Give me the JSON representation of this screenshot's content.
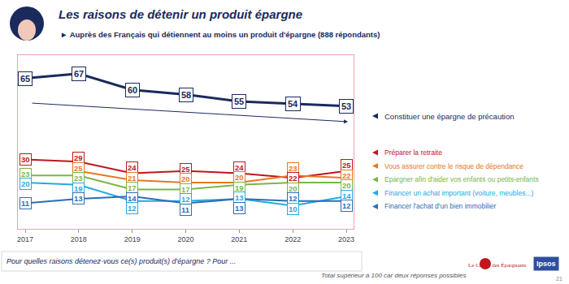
{
  "chart_data": {
    "type": "line",
    "title": "Les raisons de détenir un produit épargne",
    "subtitle": "► Auprès des Français qui détiennent au moins un produit d'épargne (888 répondants)",
    "categories": [
      "2017",
      "2018",
      "2019",
      "2020",
      "2021",
      "2022",
      "2023"
    ],
    "series": [
      {
        "name": "Constituer une épargne de précaution",
        "color": "#1b2a5c",
        "values": [
          65,
          67,
          60,
          58,
          55,
          54,
          53
        ]
      },
      {
        "name": "Préparer la retraite",
        "color": "#c0161e",
        "values": [
          30,
          29,
          24,
          25,
          24,
          22,
          25
        ]
      },
      {
        "name": "Vous assurer contre le risque de dépendance",
        "color": "#e87722",
        "values": [
          null,
          25,
          21,
          20,
          20,
          23,
          22
        ]
      },
      {
        "name": "Epargner afin d'aider vos enfants ou petits-enfants",
        "color": "#7ab648",
        "values": [
          23,
          23,
          17,
          17,
          19,
          20,
          20
        ]
      },
      {
        "name": "Financer un achat important (voiture, meubles...)",
        "color": "#29a9e0",
        "values": [
          20,
          19,
          12,
          12,
          13,
          10,
          14
        ]
      },
      {
        "name": "Financer l'achat d'un bien immobilier",
        "color": "#2f6db5",
        "values": [
          11,
          13,
          14,
          11,
          13,
          12,
          12
        ]
      }
    ],
    "ylim": [
      0,
      75
    ],
    "yticks": [],
    "tick_labels": "x",
    "grid": false,
    "data_labels": true,
    "line_style": "solid",
    "marker": "none",
    "legend": "right"
  },
  "footer": {
    "question": "Pour quelles raisons détenez-vous ce(s) produit(s) d'épargne ? Pour ...",
    "note": "Total supérieur à 100 car deux réponses possibles",
    "page": "21",
    "logos": [
      "Le Cercle des Épargnants",
      "Ipsos"
    ]
  }
}
